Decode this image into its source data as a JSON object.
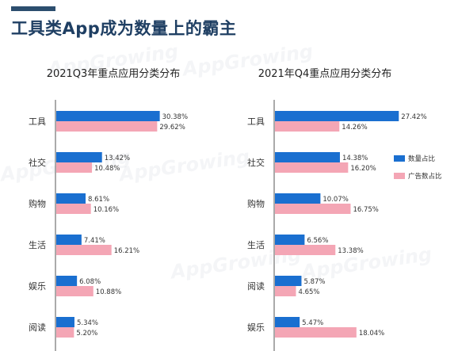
{
  "page": {
    "title": "工具类App成为数量上的霸主",
    "watermark": "AppGrowing"
  },
  "colors": {
    "count": "#1a6fd0",
    "ad": "#f4a6b5",
    "title": "#1f3f63",
    "axis": "#555555"
  },
  "legend": {
    "items": [
      "数量占比",
      "广告数占比"
    ]
  },
  "chart_data": [
    {
      "type": "bar",
      "orientation": "horizontal",
      "title": "2021Q3年重点应用分类分布",
      "categories": [
        "工具",
        "社交",
        "购物",
        "生活",
        "娱乐",
        "阅读"
      ],
      "series": [
        {
          "name": "数量占比",
          "values": [
            30.38,
            13.42,
            8.61,
            7.41,
            6.08,
            5.34
          ],
          "labels": [
            "30.38%",
            "13.42%",
            "8.61%",
            "7.41%",
            "6.08%",
            "5.34%"
          ]
        },
        {
          "name": "广告数占比",
          "values": [
            29.62,
            10.48,
            10.16,
            16.21,
            10.88,
            5.2
          ],
          "labels": [
            "29.62%",
            "10.48%",
            "10.16%",
            "16.21%",
            "10.88%",
            "5.20%"
          ]
        }
      ]
    },
    {
      "type": "bar",
      "orientation": "horizontal",
      "title": "2021年Q4重点应用分类分布",
      "categories": [
        "工具",
        "社交",
        "购物",
        "生活",
        "阅读",
        "娱乐"
      ],
      "series": [
        {
          "name": "数量占比",
          "values": [
            27.42,
            14.38,
            10.07,
            6.56,
            5.87,
            5.47
          ],
          "labels": [
            "27.42%",
            "14.38%",
            "10.07%",
            "6.56%",
            "5.87%",
            "5.47%"
          ]
        },
        {
          "name": "广告数占比",
          "values": [
            14.26,
            16.2,
            16.75,
            13.38,
            4.65,
            18.04
          ],
          "labels": [
            "14.26%",
            "16.20%",
            "16.75%",
            "13.38%",
            "4.65%",
            "18.04%"
          ]
        }
      ]
    }
  ]
}
